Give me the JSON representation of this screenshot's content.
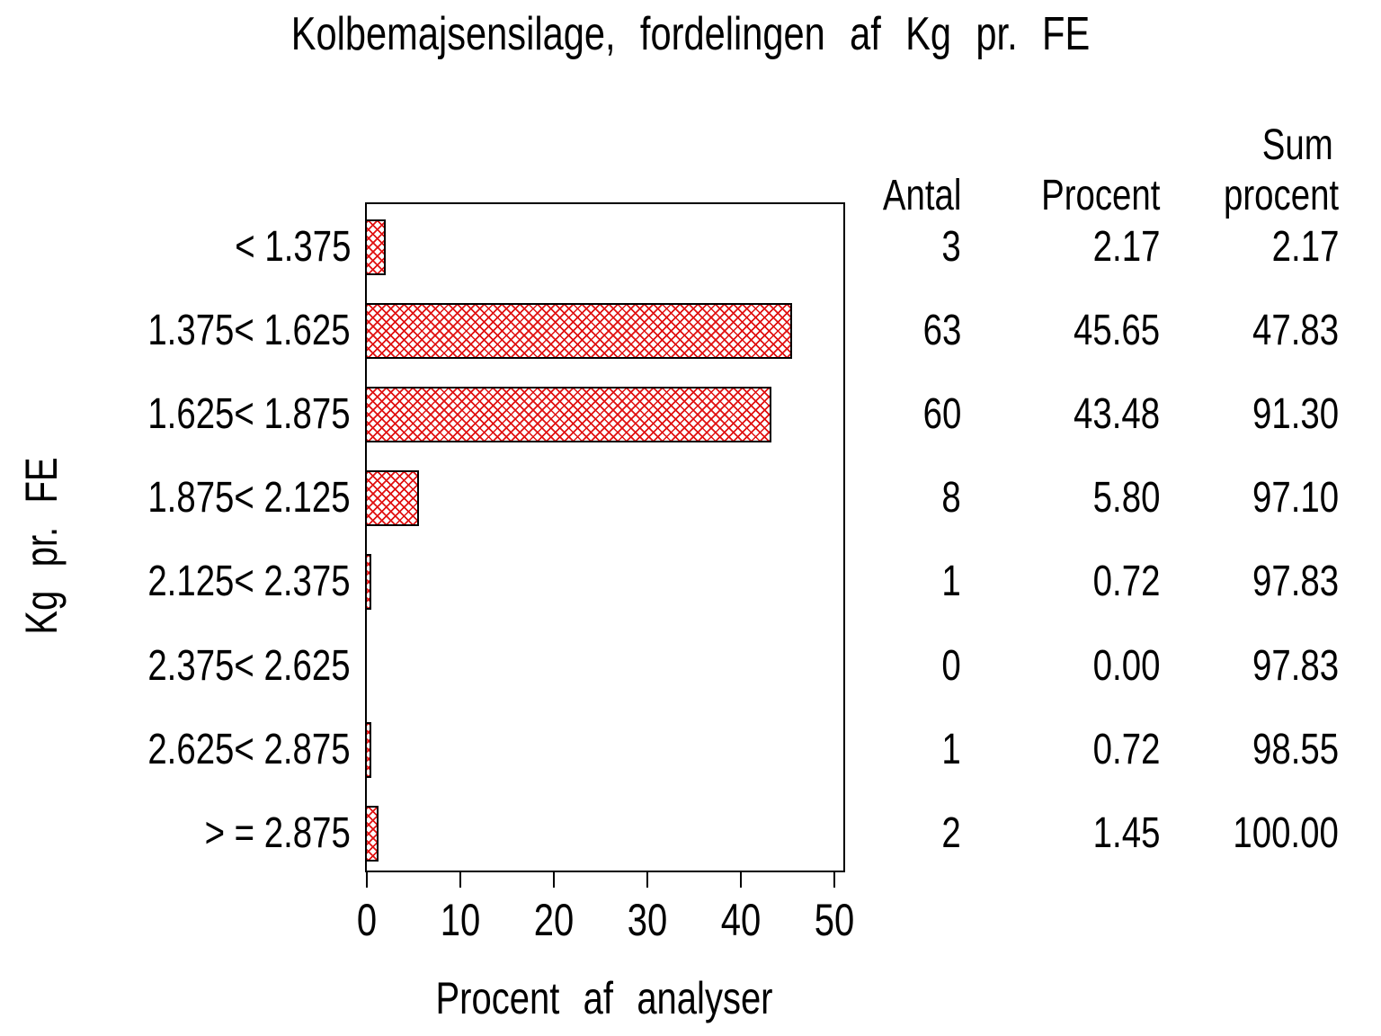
{
  "chart_data": {
    "type": "bar",
    "orientation": "horizontal",
    "title": "Kolbemajsensilage, fordelingen af Kg pr. FE",
    "xlabel": "Procent af analyser",
    "ylabel": "Kg pr. FE",
    "xlim": [
      0,
      50
    ],
    "xticks": [
      0,
      10,
      20,
      30,
      40,
      50
    ],
    "grid": false,
    "legend": "none",
    "bar_color": "#e01010",
    "bar_style": "red diagonal crosshatch on white with black outline",
    "categories": [
      "< 1.375",
      "1.375< 1.625",
      "1.625< 1.875",
      "1.875< 2.125",
      "2.125< 2.375",
      "2.375< 2.625",
      "2.625< 2.875",
      "> = 2.875"
    ],
    "values": [
      2.17,
      45.65,
      43.48,
      5.8,
      0.72,
      0.0,
      0.72,
      1.45
    ],
    "table": {
      "headers": {
        "antal": "Antal",
        "procent": "Procent",
        "sum_top": "Sum",
        "sum_bottom": "procent"
      },
      "rows": [
        {
          "antal": "3",
          "procent": "2.17",
          "sum": "2.17"
        },
        {
          "antal": "63",
          "procent": "45.65",
          "sum": "47.83"
        },
        {
          "antal": "60",
          "procent": "43.48",
          "sum": "91.30"
        },
        {
          "antal": "8",
          "procent": "5.80",
          "sum": "97.10"
        },
        {
          "antal": "1",
          "procent": "0.72",
          "sum": "97.83"
        },
        {
          "antal": "0",
          "procent": "0.00",
          "sum": "97.83"
        },
        {
          "antal": "1",
          "procent": "0.72",
          "sum": "98.55"
        },
        {
          "antal": "2",
          "procent": "1.45",
          "sum": "100.00"
        }
      ]
    }
  }
}
